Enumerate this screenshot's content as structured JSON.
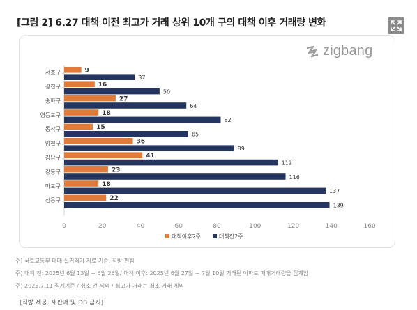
{
  "title": "[그림 2] 6.27 대책 이전 최고가 거래 상위 10개 구의 대책 이후 거래량 변화",
  "logo": {
    "text": "zigbang"
  },
  "notes": [
    "주) 국토교통부 매매 실거래가 자료 기준, 직방 편집",
    "주) 대책 전: 2025년 6월 13일 ~ 6월 26일/ 대책 이후: 2025년 6월 27일 ~ 7월 10일 거래된 아파트 매매거래량을 집계함",
    "주) 2025.7.11 집계기준 / 취소 건 제외 / 최고가 거래는 최초 거래 제외"
  ],
  "footer": "[직방 제공. 재판매 및 DB 금지]",
  "colors": {
    "after": "#e07b39",
    "before": "#24365f",
    "axis_text": "#888888",
    "grid": "#e6e6e6"
  },
  "icons": {
    "expand": "expand-icon",
    "logo": "zigbang-logo-icon"
  },
  "chart_data": {
    "type": "bar",
    "orientation": "horizontal",
    "categories": [
      "서초구",
      "광진구",
      "송파구",
      "영등포구",
      "동작구",
      "양천구",
      "강남구",
      "강동구",
      "마포구",
      "성동구"
    ],
    "series": [
      {
        "name": "대책이후2주",
        "values": [
          9,
          16,
          27,
          18,
          15,
          36,
          41,
          23,
          18,
          22
        ]
      },
      {
        "name": "대책전2주",
        "values": [
          37,
          50,
          64,
          82,
          65,
          89,
          112,
          116,
          137,
          139
        ]
      }
    ],
    "xlim": [
      0,
      160
    ],
    "xticks": [
      0,
      20,
      40,
      60,
      80,
      100,
      120,
      140,
      160
    ],
    "grid": false,
    "legend_position": "bottom-center"
  }
}
